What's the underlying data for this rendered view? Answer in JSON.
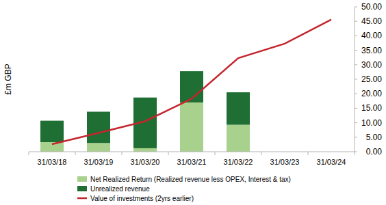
{
  "chart_data": {
    "type": "bar",
    "stacked": true,
    "grid": false,
    "legend": "bottom",
    "y_label": "£m GBP",
    "categories": [
      "31/03/18",
      "31/03/19",
      "31/03/20",
      "31/03/21",
      "31/03/22",
      "31/03/23",
      "31/03/24"
    ],
    "series": [
      {
        "name": "Net Realized Return (Realized revenue less OPEX, Interest & tax)",
        "type": "bar",
        "color": "#a9d18e",
        "values": [
          3.3,
          3.0,
          1.2,
          17.0,
          9.3,
          null,
          null
        ]
      },
      {
        "name": "Unrealized revenue",
        "type": "bar",
        "color": "#1f6e33",
        "values": [
          7.4,
          10.8,
          17.5,
          10.8,
          11.2,
          null,
          null
        ]
      },
      {
        "name": "Value of investments (2yrs earlier)",
        "type": "line",
        "color": "#c4262e",
        "line_style": "solid",
        "values": [
          2.6,
          6.5,
          10.5,
          18.3,
          32.3,
          37.3,
          45.6
        ]
      }
    ],
    "ylim": [
      0,
      50
    ],
    "yticks": [
      {
        "value": 0,
        "label": "0.00"
      },
      {
        "value": 5,
        "label": "5.00"
      },
      {
        "value": 10,
        "label": "10.00"
      },
      {
        "value": 15,
        "label": "15.00"
      },
      {
        "value": 20,
        "label": "20.00"
      },
      {
        "value": 25,
        "label": "25.00"
      },
      {
        "value": 30,
        "label": "30.00"
      },
      {
        "value": 35,
        "label": "35.00"
      },
      {
        "value": 40,
        "label": "40.00"
      },
      {
        "value": 45,
        "label": "45.00"
      },
      {
        "value": 50,
        "label": "50.00"
      }
    ]
  }
}
